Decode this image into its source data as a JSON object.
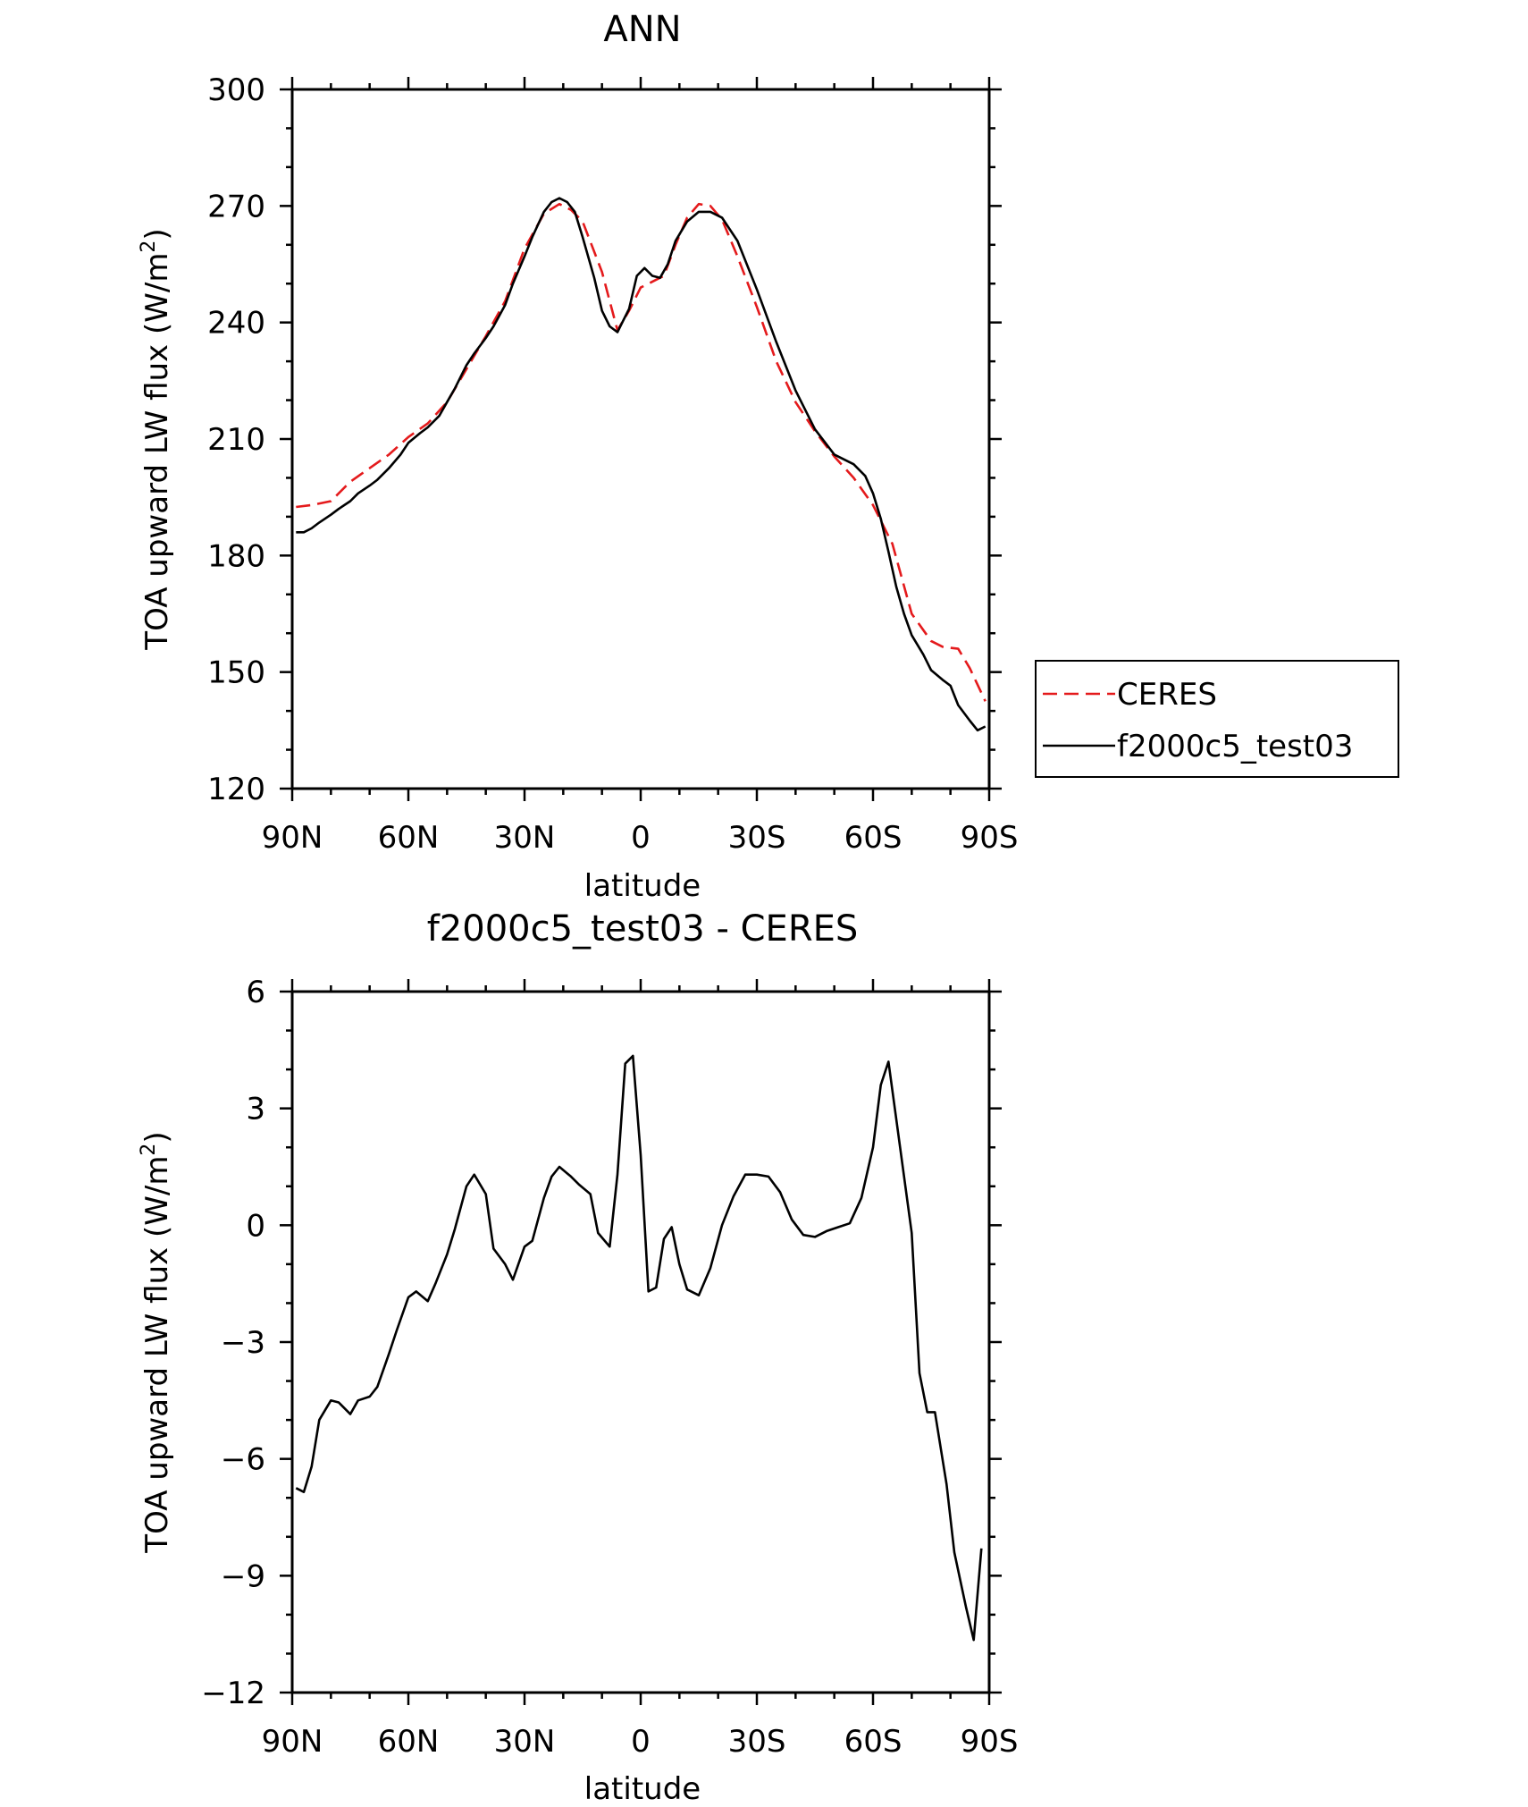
{
  "chart_data": [
    {
      "type": "line",
      "title": "ANN",
      "xlabel": "latitude",
      "ylabel": "TOA upward LW flux (W/m",
      "ylabel_sup": "2",
      "ylabel_close": ")",
      "ylim": [
        120,
        300
      ],
      "yticks": [
        "120",
        "150",
        "180",
        "210",
        "240",
        "270",
        "300"
      ],
      "xlim": [
        90,
        -90
      ],
      "xticks": [
        {
          "value": 90,
          "label": "90N"
        },
        {
          "value": 60,
          "label": "60N"
        },
        {
          "value": 30,
          "label": "30N"
        },
        {
          "value": 0,
          "label": "0"
        },
        {
          "value": -30,
          "label": "30S"
        },
        {
          "value": -60,
          "label": "60S"
        },
        {
          "value": -90,
          "label": "90S"
        }
      ],
      "legend": "right",
      "series": [
        {
          "name": "CERES",
          "color": "#e41a1c",
          "dash": "dashed",
          "x": [
            89,
            85,
            80,
            75,
            70,
            65,
            60,
            55,
            50,
            45,
            40,
            35,
            30,
            25,
            21,
            18,
            15,
            10,
            6,
            3,
            0,
            -3,
            -6,
            -9,
            -12,
            -15,
            -18,
            -21,
            -25,
            -30,
            -35,
            -40,
            -45,
            -50,
            -55,
            -60,
            -65,
            -70,
            -75,
            -78,
            -82,
            -85,
            -89
          ],
          "y": [
            192.5,
            193,
            194,
            199,
            202.5,
            206,
            210.5,
            214,
            219.5,
            228,
            236.5,
            245.5,
            259,
            268,
            270.5,
            269,
            266,
            253,
            238,
            243,
            249,
            250.5,
            252,
            260,
            267,
            270.5,
            270,
            266.5,
            257,
            244,
            230,
            219.5,
            212,
            205.5,
            200,
            193,
            183,
            165,
            158,
            156.5,
            156,
            151,
            142.5
          ]
        },
        {
          "name": "f2000c5_test03",
          "color": "#000000",
          "dash": "solid",
          "x": [
            89,
            87,
            85,
            83,
            80,
            78,
            75,
            73,
            70,
            68,
            65,
            62,
            60,
            57,
            55,
            52,
            50,
            48,
            45,
            43,
            40,
            38,
            35,
            33,
            30,
            28,
            25,
            23,
            21,
            19,
            17,
            15,
            12,
            10,
            8,
            6,
            5,
            3,
            1,
            -1,
            -3,
            -5,
            -7,
            -9,
            -12,
            -15,
            -18,
            -21,
            -25,
            -30,
            -35,
            -40,
            -45,
            -50,
            -55,
            -58,
            -60,
            -62,
            -64,
            -66,
            -68,
            -70,
            -73,
            -75,
            -78,
            -80,
            -82,
            -85,
            -87,
            -89
          ],
          "y": [
            186,
            186,
            187,
            188.5,
            190.5,
            192,
            194,
            196,
            198,
            199.5,
            202.5,
            206,
            209,
            211.5,
            213,
            216,
            219.5,
            223,
            229,
            232,
            236,
            239,
            244.5,
            250,
            257,
            262,
            268.5,
            271,
            272,
            271,
            268.5,
            262,
            251.5,
            243,
            239,
            237.5,
            239.5,
            243.5,
            252,
            254,
            252,
            251.5,
            255,
            261,
            266,
            268.5,
            268.5,
            267,
            261,
            248.5,
            235,
            222.5,
            212.5,
            206,
            203.5,
            200.5,
            196,
            189.5,
            181,
            172,
            165,
            159.5,
            154.5,
            150.5,
            148,
            146.5,
            141.5,
            137.5,
            135,
            136
          ]
        }
      ]
    },
    {
      "type": "line",
      "title": "f2000c5_test03 - CERES",
      "xlabel": "latitude",
      "ylabel": "TOA upward LW flux (W/m",
      "ylabel_sup": "2",
      "ylabel_close": ")",
      "ylim": [
        -12,
        6
      ],
      "yticks": [
        "−12",
        "−9",
        "−6",
        "−3",
        "0",
        "3",
        "6"
      ],
      "xlim": [
        90,
        -90
      ],
      "xticks": [
        {
          "value": 90,
          "label": "90N"
        },
        {
          "value": 60,
          "label": "60N"
        },
        {
          "value": 30,
          "label": "30N"
        },
        {
          "value": 0,
          "label": "0"
        },
        {
          "value": -30,
          "label": "30S"
        },
        {
          "value": -60,
          "label": "60S"
        },
        {
          "value": -90,
          "label": "90S"
        }
      ],
      "series": [
        {
          "color": "#000000",
          "dash": "solid",
          "x": [
            89,
            87,
            85,
            83,
            80,
            78,
            75,
            73,
            70,
            68,
            65,
            63,
            60,
            58,
            55,
            53,
            50,
            48,
            45,
            43,
            40,
            38,
            35,
            33,
            30,
            28,
            25,
            23,
            21,
            18,
            16,
            13,
            11,
            8,
            6,
            4,
            2,
            0,
            -2,
            -4,
            -6,
            -8,
            -10,
            -12,
            -15,
            -18,
            -21,
            -24,
            -27,
            -30,
            -33,
            -36,
            -39,
            -42,
            -45,
            -48,
            -51,
            -54,
            -57,
            -60,
            -62,
            -64,
            -67,
            -70,
            -72,
            -74,
            -76,
            -79,
            -81,
            -84,
            -86,
            -88
          ],
          "y": [
            -6.75,
            -6.85,
            -6.2,
            -5,
            -4.5,
            -4.55,
            -4.85,
            -4.5,
            -4.4,
            -4.15,
            -3.3,
            -2.7,
            -1.85,
            -1.7,
            -1.95,
            -1.5,
            -0.75,
            -0.1,
            1,
            1.3,
            0.8,
            -0.6,
            -1,
            -1.4,
            -0.55,
            -0.4,
            0.7,
            1.25,
            1.5,
            1.25,
            1.05,
            0.8,
            -0.2,
            -0.55,
            1.3,
            4.15,
            4.35,
            1.8,
            -1.7,
            -1.6,
            -0.35,
            -0.05,
            -1,
            -1.65,
            -1.8,
            -1.1,
            0,
            0.75,
            1.3,
            1.3,
            1.25,
            0.85,
            0.15,
            -0.25,
            -0.3,
            -0.15,
            -0.05,
            0.05,
            0.7,
            2,
            3.6,
            4.2,
            2,
            -0.2,
            -3.8,
            -4.8,
            -4.8,
            -6.65,
            -8.4,
            -9.8,
            -10.65,
            -8.3
          ]
        }
      ]
    }
  ]
}
